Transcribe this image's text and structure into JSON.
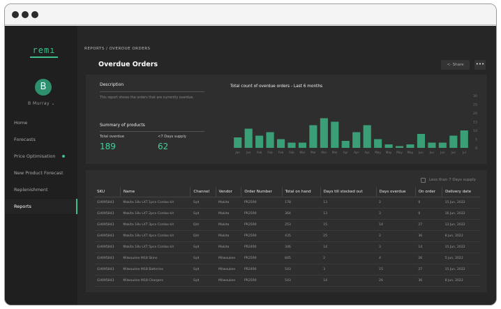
{
  "sidebar": {
    "logo": "remı",
    "avatar_letter": "B",
    "user_name": "B Murray ⌄",
    "items": [
      {
        "label": "Home"
      },
      {
        "label": "Forecasts"
      },
      {
        "label": "Price Optimisation"
      },
      {
        "label": "New Product Forecast"
      },
      {
        "label": "Replenishment"
      },
      {
        "label": "Reports"
      }
    ]
  },
  "header": {
    "breadcrumb": "REPORTS / OVERDUE ORDERS",
    "title": "Overdue Orders",
    "share_label": "Share",
    "share_icon": "share-icon",
    "more_label": "•••"
  },
  "description": {
    "heading": "Description",
    "text": "This report shows the orders that are currently overdue."
  },
  "summary": {
    "heading": "Summary of products",
    "total_overdue_label": "Total overdue",
    "total_overdue_value": "189",
    "days_supply_label": "<7 Days supply",
    "days_supply_value": "62"
  },
  "chart_data": {
    "type": "bar",
    "title": "Total count of overdue orders - Last 6 months",
    "categories": [
      "Jan",
      "Jan",
      "Feb",
      "Feb",
      "Feb",
      "Feb",
      "Mar",
      "Mar",
      "Mar",
      "Mar",
      "Apr",
      "Apr",
      "Apr",
      "May",
      "May",
      "May",
      "May",
      "Jun",
      "Jun",
      "Jun",
      "Jun",
      "Jul"
    ],
    "values": [
      6,
      11,
      7,
      9,
      5,
      3,
      3,
      13,
      17,
      15,
      4,
      9,
      13,
      5,
      2,
      1,
      2,
      8,
      3,
      3,
      7,
      10
    ],
    "yticks": [
      0,
      5,
      10,
      15,
      20,
      25,
      30
    ],
    "ylim": [
      0,
      30
    ],
    "color": "#3a9f76"
  },
  "filter": {
    "checkbox_label": "Less than 7 Days supply"
  },
  "table": {
    "headers": [
      "SKU",
      "Name",
      "Channel",
      "Vendor",
      "Order Number",
      "Total on hand",
      "Days till stocked out",
      "Days overdue",
      "On order",
      "Delivery date"
    ],
    "rows": [
      [
        "GH095843",
        "Makita 18v LXT 1pce Combo kit",
        "Syd",
        "Makita",
        "PR2590",
        "178",
        "13",
        "2",
        "0",
        "15 Jun, 2022"
      ],
      [
        "GH095843",
        "Makita 18v LXT 2pce Combo kit",
        "Syd",
        "Makita",
        "PR2590",
        "364",
        "13",
        "3",
        "0",
        "16 Jun, 2022"
      ],
      [
        "GH095843",
        "Makita 18v LXT 3pce Combo kit",
        "Qld",
        "Makita",
        "PR2590",
        "253",
        "15",
        "14",
        "27",
        "13 Jun, 2022"
      ],
      [
        "GH095843",
        "Makita 18v LXT 4pce Combo kit",
        "Qld",
        "Makita",
        "PR2590",
        "435",
        "25",
        "2",
        "36",
        "8 Jun, 2022"
      ],
      [
        "GH095843",
        "Makita 18v LXT 5pce Combo kit",
        "Syd",
        "Makita",
        "PR2490",
        "346",
        "14",
        "3",
        "14",
        "15 Jun, 2022"
      ],
      [
        "GH095843",
        "Milwaukee M18 Skins",
        "Syd",
        "Milwaukee",
        "PR2590",
        "845",
        "2",
        "4",
        "26",
        "5 Jun, 2022"
      ],
      [
        "GH095843",
        "Milwaukee M18 Batteries",
        "Syd",
        "Milwaukee",
        "PR2490",
        "543",
        "3",
        "15",
        "27",
        "15 Jun, 2022"
      ],
      [
        "GH095843",
        "Milwaukee M18 Chargers",
        "Syd",
        "Milwaukee",
        "PR2590",
        "543",
        "14",
        "26",
        "36",
        "8 Jun, 2022"
      ]
    ]
  }
}
